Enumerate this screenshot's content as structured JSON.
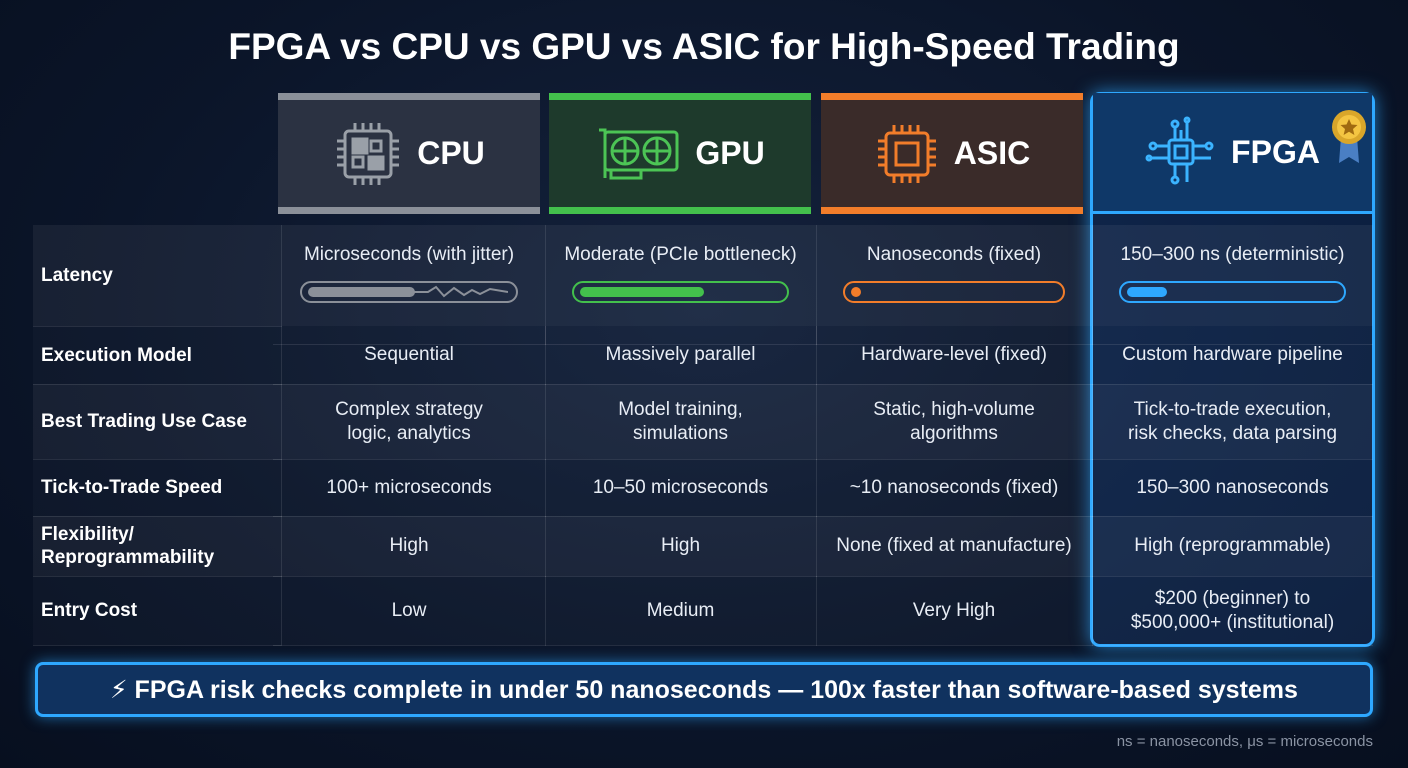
{
  "title": "FPGA vs CPU vs GPU vs ASIC for High-Speed Trading",
  "columns": [
    "CPU",
    "GPU",
    "ASIC",
    "FPGA"
  ],
  "rows": [
    {
      "label": [
        "Latency"
      ],
      "cells": [
        [
          "Microseconds (with jitter)"
        ],
        [
          "Moderate (PCIe bottleneck)"
        ],
        [
          "Nanoseconds (fixed)"
        ],
        [
          "150–300 ns (deterministic)"
        ]
      ]
    },
    {
      "label": [
        "Execution Model"
      ],
      "cells": [
        [
          "Sequential"
        ],
        [
          "Massively parallel"
        ],
        [
          "Hardware-level (fixed)"
        ],
        [
          "Custom hardware pipeline"
        ]
      ]
    },
    {
      "label": [
        "Best Trading Use Case"
      ],
      "cells": [
        [
          "Complex strategy",
          "logic, analytics"
        ],
        [
          "Model training,",
          "simulations"
        ],
        [
          "Static, high-volume",
          "algorithms"
        ],
        [
          "Tick-to-trade execution,",
          "risk checks, data parsing"
        ]
      ]
    },
    {
      "label": [
        "Tick-to-Trade Speed"
      ],
      "cells": [
        [
          "100+ microseconds"
        ],
        [
          "10–50 microseconds"
        ],
        [
          "~10 nanoseconds (fixed)"
        ],
        [
          "150–300 nanoseconds"
        ]
      ]
    },
    {
      "label": [
        "Flexibility/",
        "Reprogrammability"
      ],
      "cells": [
        [
          "High"
        ],
        [
          "High"
        ],
        [
          "None (fixed at manufacture)"
        ],
        [
          "High (reprogrammable)"
        ]
      ]
    },
    {
      "label": [
        "Entry Cost"
      ],
      "cells": [
        [
          "Low"
        ],
        [
          "Medium"
        ],
        [
          "Very High"
        ],
        [
          "$200 (beginner) to",
          "$500,000+ (institutional)"
        ]
      ]
    }
  ],
  "callout": "⚡ FPGA risk checks complete in under 50 nanoseconds — 100x faster than software-based systems",
  "note": "ns = nanoseconds, μs = microseconds"
}
